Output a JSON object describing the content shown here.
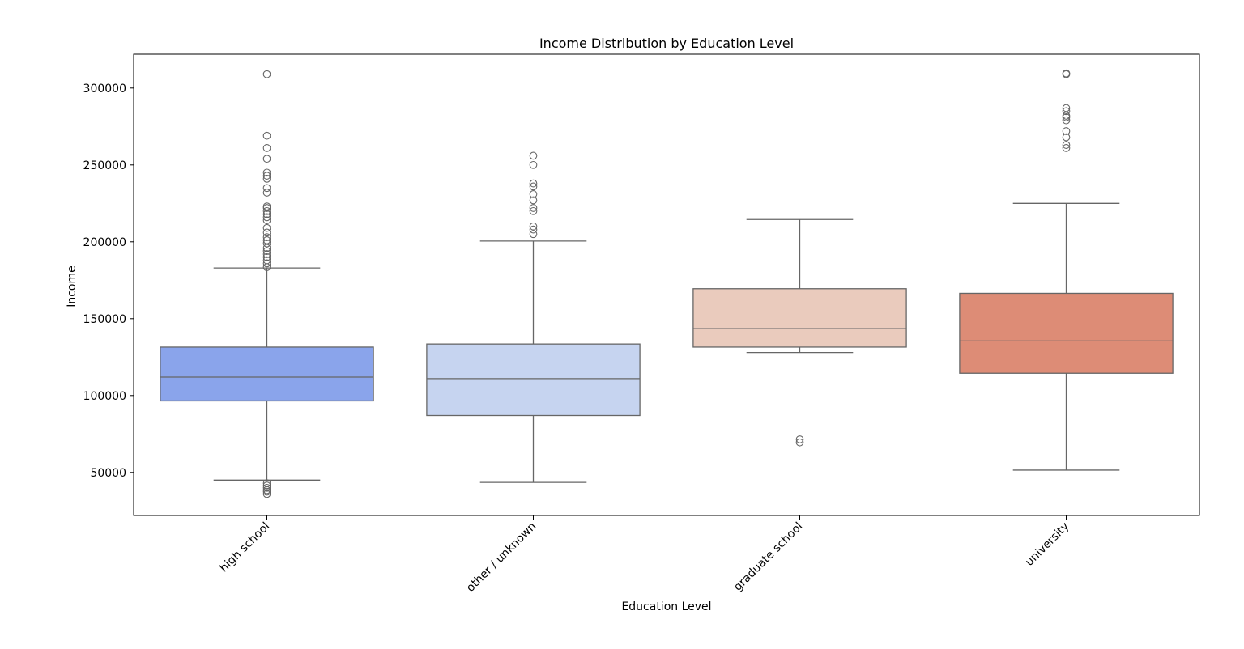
{
  "chart_data": {
    "type": "box",
    "title": "Income Distribution by Education Level",
    "xlabel": "Education Level",
    "ylabel": "Income",
    "ylim": [
      22000,
      322000
    ],
    "yticks": [
      50000,
      100000,
      150000,
      200000,
      250000,
      300000
    ],
    "grid": false,
    "legend": "none",
    "categories": [
      "high school",
      "other / unknown",
      "graduate school",
      "university"
    ],
    "boxes": [
      {
        "category": "high school",
        "color": "#8aa4eb",
        "whisker_low": 45000,
        "q1": 96500,
        "median": 112000,
        "q3": 131500,
        "whisker_high": 183000,
        "outliers": [
          36000,
          37500,
          38500,
          40000,
          41500,
          43000,
          183500,
          186000,
          188000,
          190000,
          192000,
          194000,
          196000,
          199000,
          201000,
          203000,
          206000,
          209000,
          214000,
          216000,
          218000,
          220000,
          222000,
          223000,
          232000,
          235000,
          241000,
          243000,
          245000,
          254000,
          261000,
          269000,
          309000
        ]
      },
      {
        "category": "other / unknown",
        "color": "#c6d4f0",
        "whisker_low": 43500,
        "q1": 87000,
        "median": 111000,
        "q3": 133500,
        "whisker_high": 200500,
        "outliers": [
          205000,
          208000,
          210000,
          220000,
          222000,
          227000,
          231000,
          236000,
          238000,
          250000,
          256000
        ]
      },
      {
        "category": "graduate school",
        "color": "#eacbbd",
        "whisker_low": 128000,
        "q1": 131500,
        "median": 143500,
        "q3": 169500,
        "whisker_high": 214500,
        "outliers": [
          69500,
          71500
        ]
      },
      {
        "category": "university",
        "color": "#dd8c76",
        "whisker_low": 51500,
        "q1": 114500,
        "median": 135500,
        "q3": 166500,
        "whisker_high": 225000,
        "outliers": [
          261000,
          263000,
          268000,
          272000,
          279000,
          281000,
          282000,
          285000,
          287000,
          309000,
          309500
        ]
      }
    ]
  }
}
